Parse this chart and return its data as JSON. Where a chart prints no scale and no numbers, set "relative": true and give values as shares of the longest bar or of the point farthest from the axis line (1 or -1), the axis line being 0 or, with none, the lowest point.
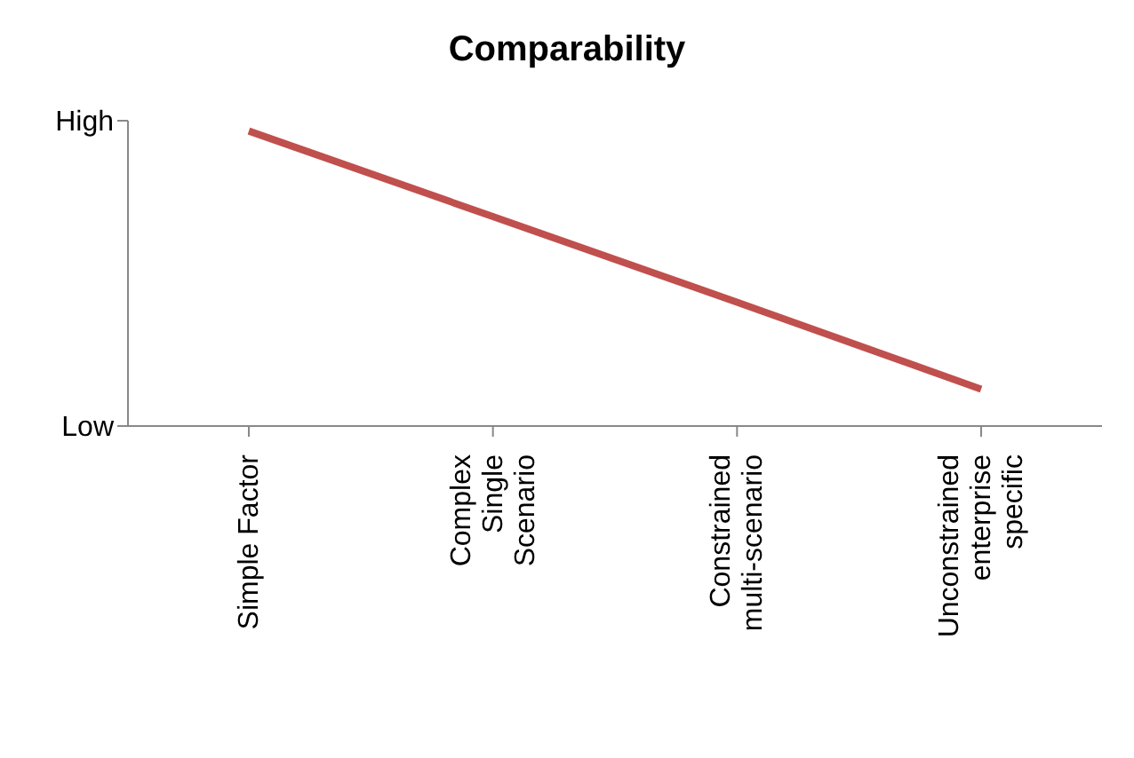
{
  "chart_data": {
    "type": "line",
    "title": "Comparability",
    "categories": [
      "Simple Factor",
      "Complex Single Scenario",
      "Constrained multi-scenario",
      "Unconstrained enterprise specific"
    ],
    "series": [
      {
        "color": "#c0504d",
        "values": [
          1,
          0.71,
          0.42,
          0.125
        ]
      }
    ],
    "relative": true,
    "annotations": [
      "High",
      "Low"
    ],
    "grid": false,
    "legend": false,
    "marker": "none"
  }
}
